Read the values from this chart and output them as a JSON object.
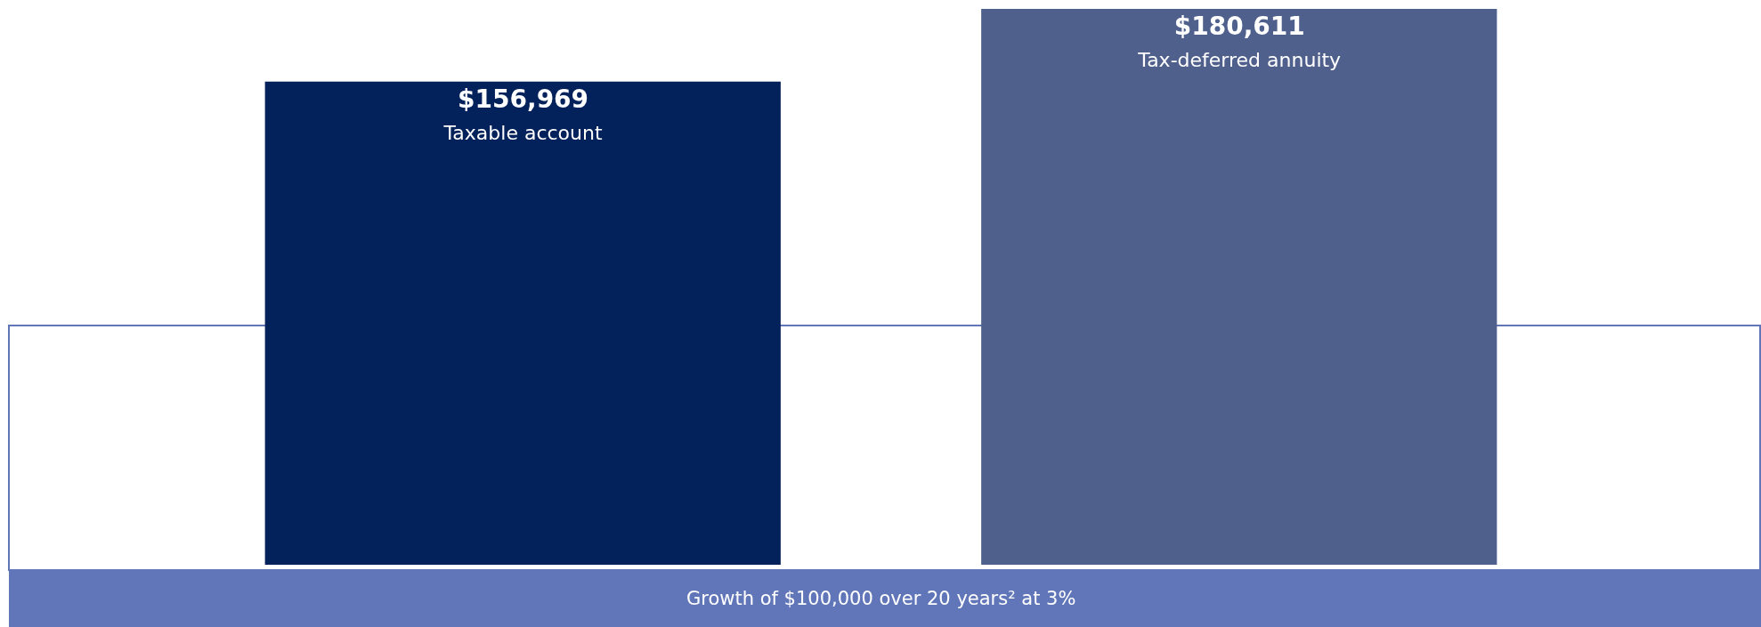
{
  "chart_data": {
    "type": "bar",
    "categories": [
      "Taxable account",
      "Tax-deferred annuity"
    ],
    "values": [
      156969,
      180611
    ],
    "value_labels": [
      "$156,969",
      "$180,611"
    ],
    "colors": [
      "#03215a",
      "#50608c"
    ],
    "tick_labels": false,
    "legend": false,
    "annotations": [
      "Growth of $100,000 over 20 years² at 3%"
    ]
  }
}
